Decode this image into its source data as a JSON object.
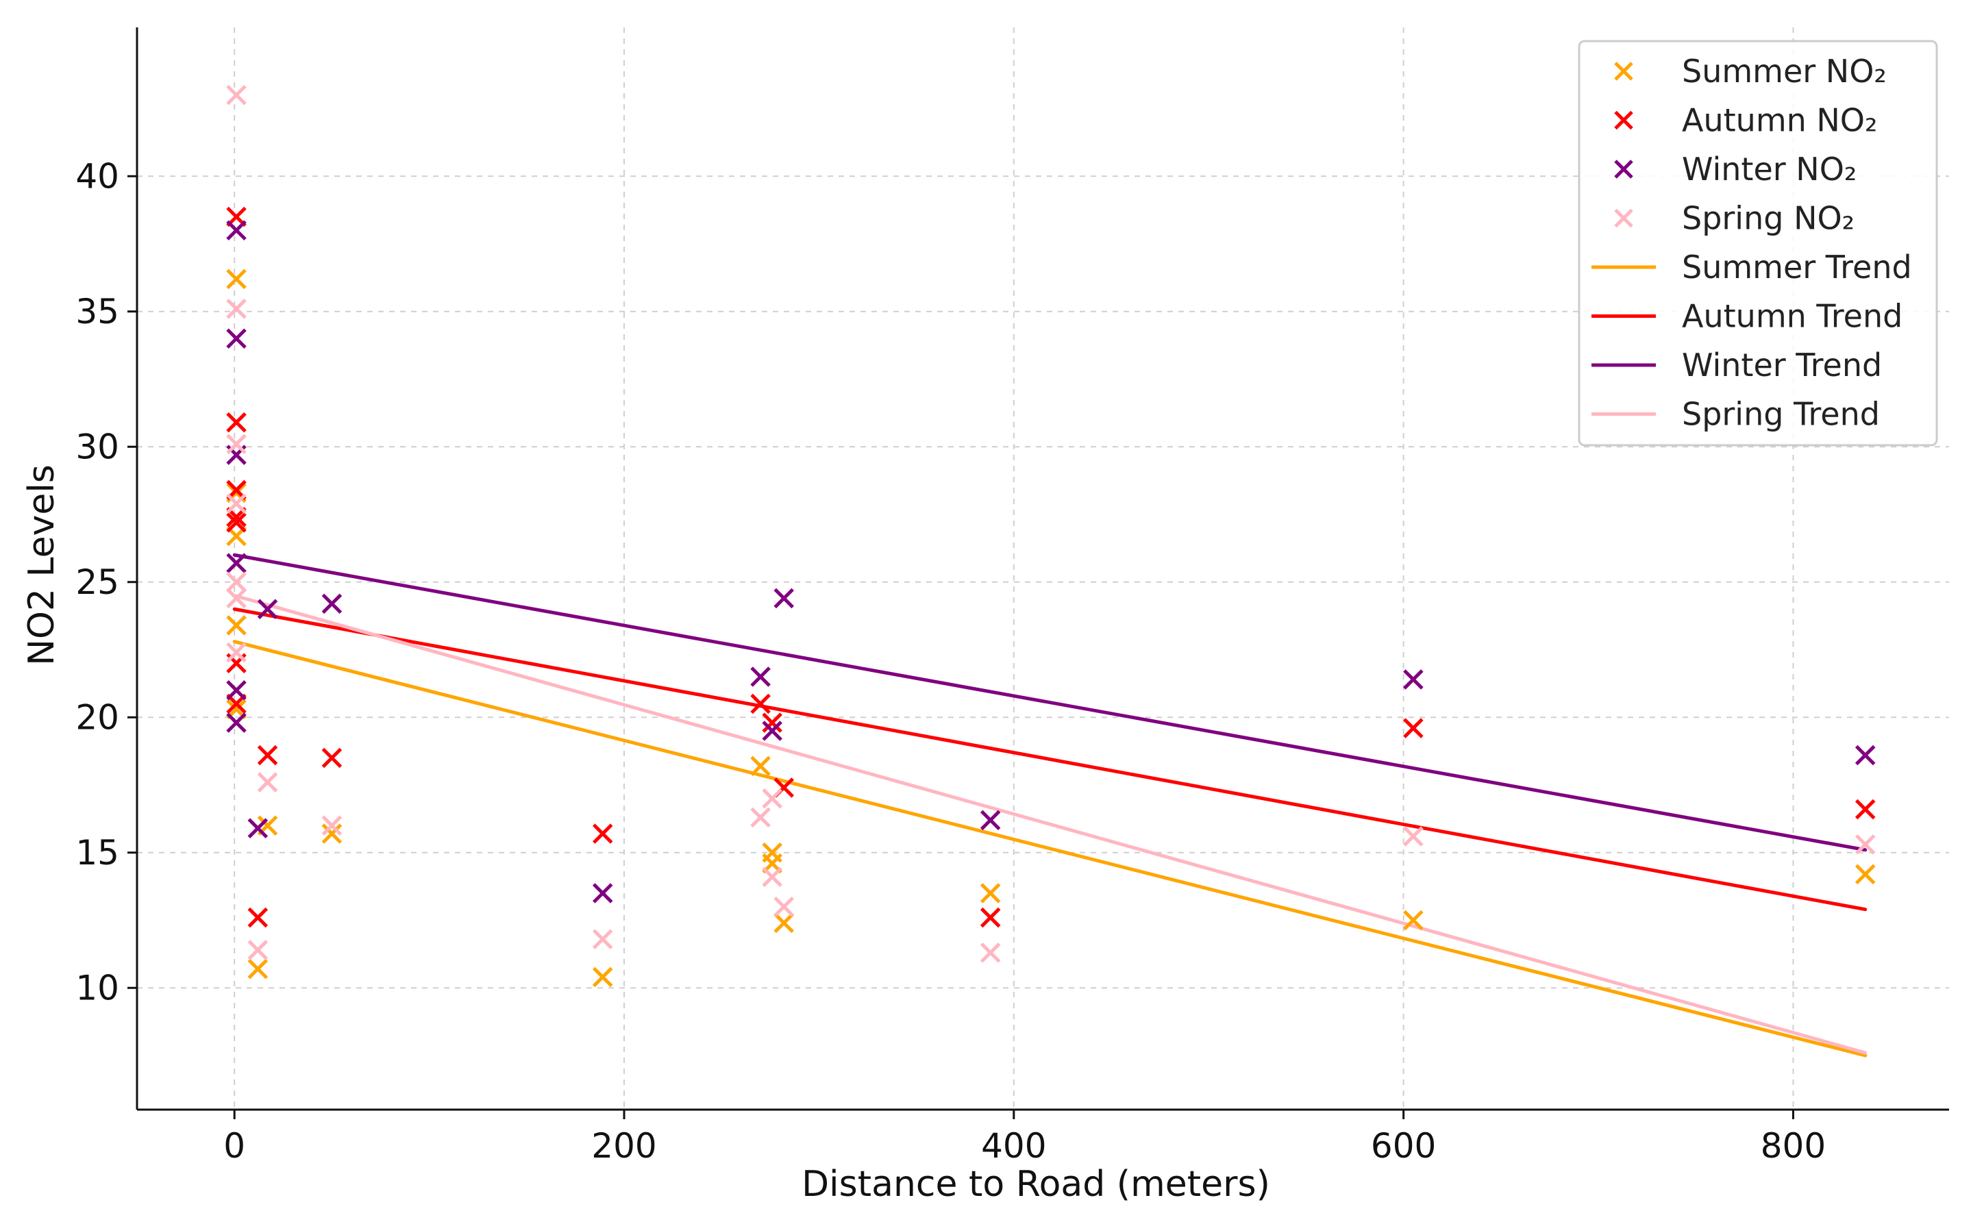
{
  "chart_data": {
    "type": "scatter",
    "xlabel": "Distance to Road (meters)",
    "ylabel": "NO2 Levels",
    "xlim": [
      -50,
      880
    ],
    "ylim": [
      5.5,
      45.5
    ],
    "xticks": [
      0,
      200,
      400,
      600,
      800
    ],
    "yticks": [
      10,
      15,
      20,
      25,
      30,
      35,
      40
    ],
    "grid": true,
    "legend_position": "top-right",
    "colors": {
      "summer": "#FFA500",
      "autumn": "#FF0000",
      "winter": "#800080",
      "spring": "#FFB6C1"
    },
    "series": [
      {
        "name": "Summer NO₂",
        "season": "summer",
        "kind": "scatter",
        "points": [
          [
            1,
            36.2
          ],
          [
            1,
            28.3
          ],
          [
            1,
            26.7
          ],
          [
            1,
            23.4
          ],
          [
            1,
            20.3
          ],
          [
            12,
            10.7
          ],
          [
            17,
            16.0
          ],
          [
            50,
            15.7
          ],
          [
            189,
            10.4
          ],
          [
            270,
            18.2
          ],
          [
            276,
            15.0
          ],
          [
            276,
            14.6
          ],
          [
            282,
            12.4
          ],
          [
            388,
            13.5
          ],
          [
            605,
            12.5
          ],
          [
            837,
            14.2
          ]
        ]
      },
      {
        "name": "Autumn NO₂",
        "season": "autumn",
        "kind": "scatter",
        "points": [
          [
            1,
            38.5
          ],
          [
            1,
            30.9
          ],
          [
            1,
            28.4
          ],
          [
            1,
            27.4
          ],
          [
            1,
            27.2
          ],
          [
            1,
            22.0
          ],
          [
            1,
            20.5
          ],
          [
            12,
            12.6
          ],
          [
            17,
            18.6
          ],
          [
            50,
            18.5
          ],
          [
            189,
            15.7
          ],
          [
            270,
            20.5
          ],
          [
            276,
            19.8
          ],
          [
            282,
            17.4
          ],
          [
            388,
            12.6
          ],
          [
            605,
            19.6
          ],
          [
            837,
            16.6
          ]
        ]
      },
      {
        "name": "Winter NO₂",
        "season": "winter",
        "kind": "scatter",
        "points": [
          [
            1,
            38.0
          ],
          [
            1,
            34.0
          ],
          [
            1,
            29.7
          ],
          [
            1,
            25.7
          ],
          [
            1,
            21.0
          ],
          [
            1,
            19.8
          ],
          [
            12,
            15.9
          ],
          [
            17,
            24.0
          ],
          [
            50,
            24.2
          ],
          [
            189,
            13.5
          ],
          [
            270,
            21.5
          ],
          [
            276,
            19.5
          ],
          [
            282,
            24.4
          ],
          [
            388,
            16.2
          ],
          [
            605,
            21.4
          ],
          [
            837,
            18.6
          ]
        ]
      },
      {
        "name": "Spring NO₂",
        "season": "spring",
        "kind": "scatter",
        "points": [
          [
            1,
            43.0
          ],
          [
            1,
            35.1
          ],
          [
            1,
            30.1
          ],
          [
            1,
            27.9
          ],
          [
            1,
            25.0
          ],
          [
            1,
            24.4
          ],
          [
            1,
            22.4
          ],
          [
            12,
            11.4
          ],
          [
            17,
            17.6
          ],
          [
            50,
            16.0
          ],
          [
            189,
            11.8
          ],
          [
            270,
            16.3
          ],
          [
            276,
            17.0
          ],
          [
            276,
            14.1
          ],
          [
            282,
            13.0
          ],
          [
            388,
            11.3
          ],
          [
            605,
            15.6
          ],
          [
            837,
            15.3
          ]
        ]
      },
      {
        "name": "Summer Trend",
        "season": "summer",
        "kind": "line",
        "points": [
          [
            0,
            22.8
          ],
          [
            837,
            7.5
          ]
        ]
      },
      {
        "name": "Autumn Trend",
        "season": "autumn",
        "kind": "line",
        "points": [
          [
            0,
            24.0
          ],
          [
            837,
            12.9
          ]
        ]
      },
      {
        "name": "Winter Trend",
        "season": "winter",
        "kind": "line",
        "points": [
          [
            0,
            26.0
          ],
          [
            837,
            15.1
          ]
        ]
      },
      {
        "name": "Spring Trend",
        "season": "spring",
        "kind": "line",
        "points": [
          [
            0,
            24.5
          ],
          [
            837,
            7.6
          ]
        ]
      }
    ]
  }
}
